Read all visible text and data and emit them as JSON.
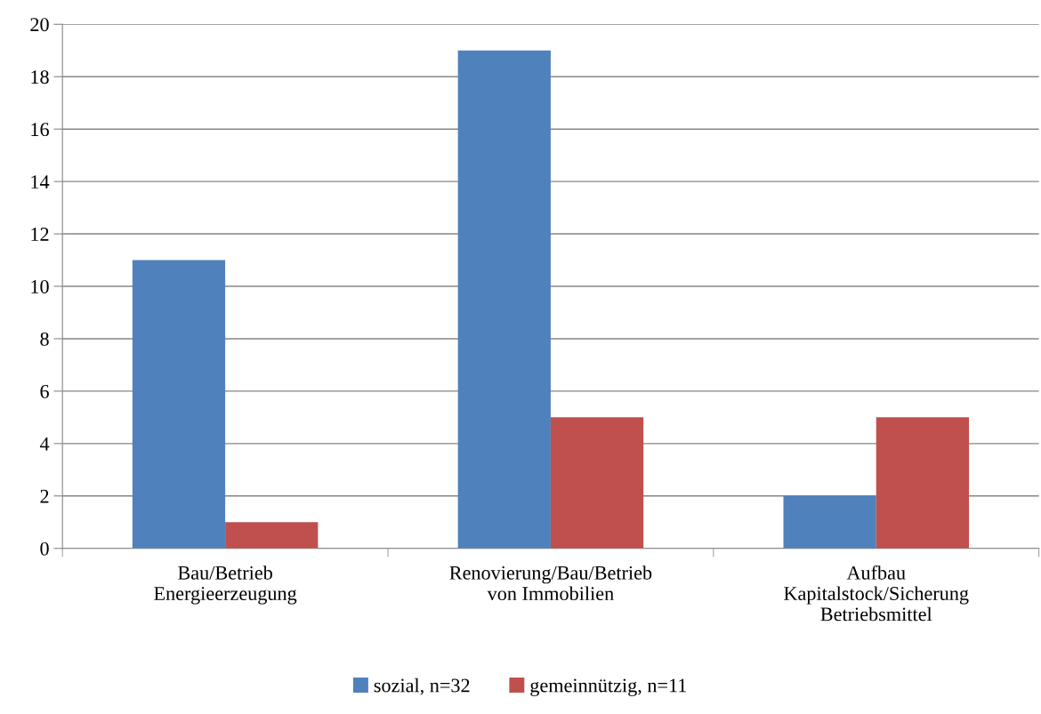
{
  "chart_data": {
    "type": "bar",
    "categories": [
      "Bau/Betrieb\nEnergieerzeugung",
      "Renovierung/Bau/Betrieb\nvon Immobilien",
      "Aufbau\nKapitalstock/Sicherung\nBetriebsmittel"
    ],
    "series": [
      {
        "name": "sozial, n=32",
        "color": "#4f81bd",
        "values": [
          11,
          19,
          2
        ]
      },
      {
        "name": "gemeinnützig, n=11",
        "color": "#c0504d",
        "values": [
          1,
          5,
          5
        ]
      }
    ],
    "ylim": [
      0,
      20
    ],
    "yticks": [
      0,
      2,
      4,
      6,
      8,
      10,
      12,
      14,
      16,
      18,
      20
    ],
    "grid": "y",
    "legend": "bottom"
  }
}
